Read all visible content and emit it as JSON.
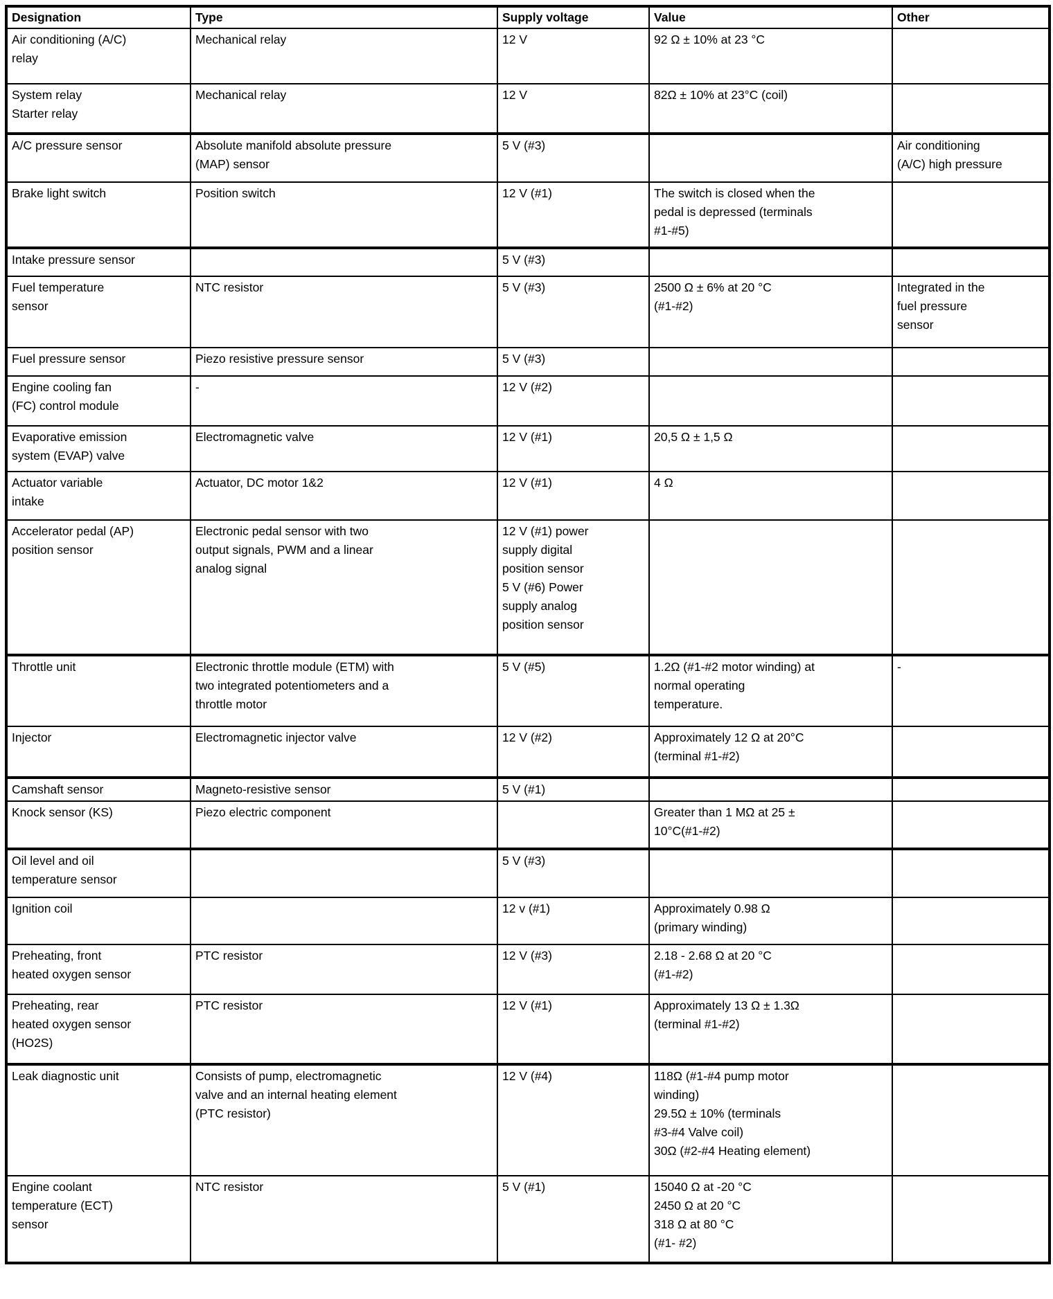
{
  "table": {
    "columns": [
      {
        "key": "designation",
        "label": "Designation"
      },
      {
        "key": "type",
        "label": "Type"
      },
      {
        "key": "supply_voltage",
        "label": "Supply voltage"
      },
      {
        "key": "value",
        "label": "Value"
      },
      {
        "key": "other",
        "label": "Other"
      }
    ],
    "rows": [
      {
        "designation": "Air conditioning (A/C)\nrelay",
        "type": "Mechanical relay",
        "supply_voltage": "12 V",
        "value": "92 Ω ± 10% at 23 °C",
        "other": ""
      },
      {
        "designation": "System relay\nStarter relay",
        "type": "Mechanical relay",
        "supply_voltage": "12 V",
        "value": "82Ω ± 10% at 23°C (coil)",
        "other": ""
      },
      {
        "designation": "A/C pressure sensor",
        "type": "Absolute manifold absolute pressure\n(MAP) sensor",
        "supply_voltage": "5 V (#3)",
        "value": "",
        "other": "Air conditioning\n(A/C) high pressure"
      },
      {
        "designation": "Brake light switch",
        "type": "Position switch",
        "supply_voltage": "12 V (#1)",
        "value": "The switch is closed when the\npedal is depressed (terminals\n#1-#5)",
        "other": ""
      },
      {
        "designation": "Intake pressure sensor",
        "type": "",
        "supply_voltage": "5 V (#3)",
        "value": "",
        "other": ""
      },
      {
        "designation": "Fuel temperature\nsensor",
        "type": "NTC resistor",
        "supply_voltage": "5 V (#3)",
        "value": "2500 Ω ± 6% at 20 °C\n(#1-#2)",
        "other": "Integrated in the\nfuel pressure\nsensor"
      },
      {
        "designation": "Fuel pressure sensor",
        "type": "Piezo resistive pressure sensor",
        "supply_voltage": "5 V (#3)",
        "value": "",
        "other": ""
      },
      {
        "designation": "Engine cooling fan\n(FC) control module",
        "type": "-",
        "supply_voltage": "12 V (#2)",
        "value": "",
        "other": ""
      },
      {
        "designation": "Evaporative emission\nsystem (EVAP) valve",
        "type": "Electromagnetic valve",
        "supply_voltage": "12 V (#1)",
        "value": "20,5 Ω ± 1,5 Ω",
        "other": ""
      },
      {
        "designation": "Actuator variable\nintake",
        "type": "Actuator, DC motor 1&2",
        "supply_voltage": "12 V (#1)",
        "value": "4 Ω",
        "other": ""
      },
      {
        "designation": "Accelerator pedal (AP)\nposition sensor",
        "type": "Electronic pedal sensor with two\noutput signals, PWM and a linear\nanalog signal",
        "supply_voltage": "12 V (#1) power\nsupply digital\nposition sensor\n5 V (#6) Power\nsupply analog\nposition sensor",
        "value": "",
        "other": ""
      },
      {
        "designation": "Throttle unit",
        "type": "Electronic throttle module (ETM) with\ntwo integrated potentiometers and a\nthrottle motor",
        "supply_voltage": "5 V (#5)",
        "value": "1.2Ω (#1-#2 motor winding) at\nnormal operating\ntemperature.",
        "other": "-"
      },
      {
        "designation": "Injector",
        "type": "Electromagnetic injector valve",
        "supply_voltage": "12 V (#2)",
        "value": "Approximately 12 Ω at 20°C\n(terminal #1-#2)",
        "other": ""
      },
      {
        "designation": "Camshaft sensor",
        "type": "Magneto-resistive sensor",
        "supply_voltage": "5 V (#1)",
        "value": "",
        "other": ""
      },
      {
        "designation": "Knock sensor (KS)",
        "type": "Piezo electric component",
        "supply_voltage": "",
        "value": "Greater than 1 MΩ at 25 ±\n10°C(#1-#2)",
        "other": ""
      },
      {
        "designation": "Oil level and oil\ntemperature sensor",
        "type": "",
        "supply_voltage": "5 V (#3)",
        "value": "",
        "other": ""
      },
      {
        "designation": "Ignition coil",
        "type": "",
        "supply_voltage": "12 v (#1)",
        "value": "Approximately 0.98 Ω\n(primary winding)",
        "other": ""
      },
      {
        "designation": "Preheating, front\nheated oxygen sensor",
        "type": "PTC resistor",
        "supply_voltage": "12 V (#3)",
        "value": "2.18 - 2.68 Ω at 20 °C\n(#1-#2)",
        "other": ""
      },
      {
        "designation": "Preheating, rear\nheated oxygen sensor\n(HO2S)",
        "type": "PTC resistor",
        "supply_voltage": "12 V (#1)",
        "value": "Approximately 13 Ω ± 1.3Ω\n(terminal #1-#2)",
        "other": ""
      },
      {
        "designation": "Leak diagnostic unit",
        "type": "Consists of pump, electromagnetic\nvalve and an internal heating element\n(PTC resistor)",
        "supply_voltage": "12 V (#4)",
        "value": "118Ω (#1-#4 pump motor\nwinding)\n29.5Ω ± 10% (terminals\n#3-#4 Valve coil)\n30Ω (#2-#4 Heating element)",
        "other": ""
      },
      {
        "designation": "Engine coolant\ntemperature (ECT)\nsensor",
        "type": "NTC resistor",
        "supply_voltage": "5 V (#1)",
        "value": "15040 Ω at -20 °C\n2450 Ω at 20 °C\n318 Ω at 80 °C\n(#1- #2)",
        "other": ""
      }
    ]
  }
}
